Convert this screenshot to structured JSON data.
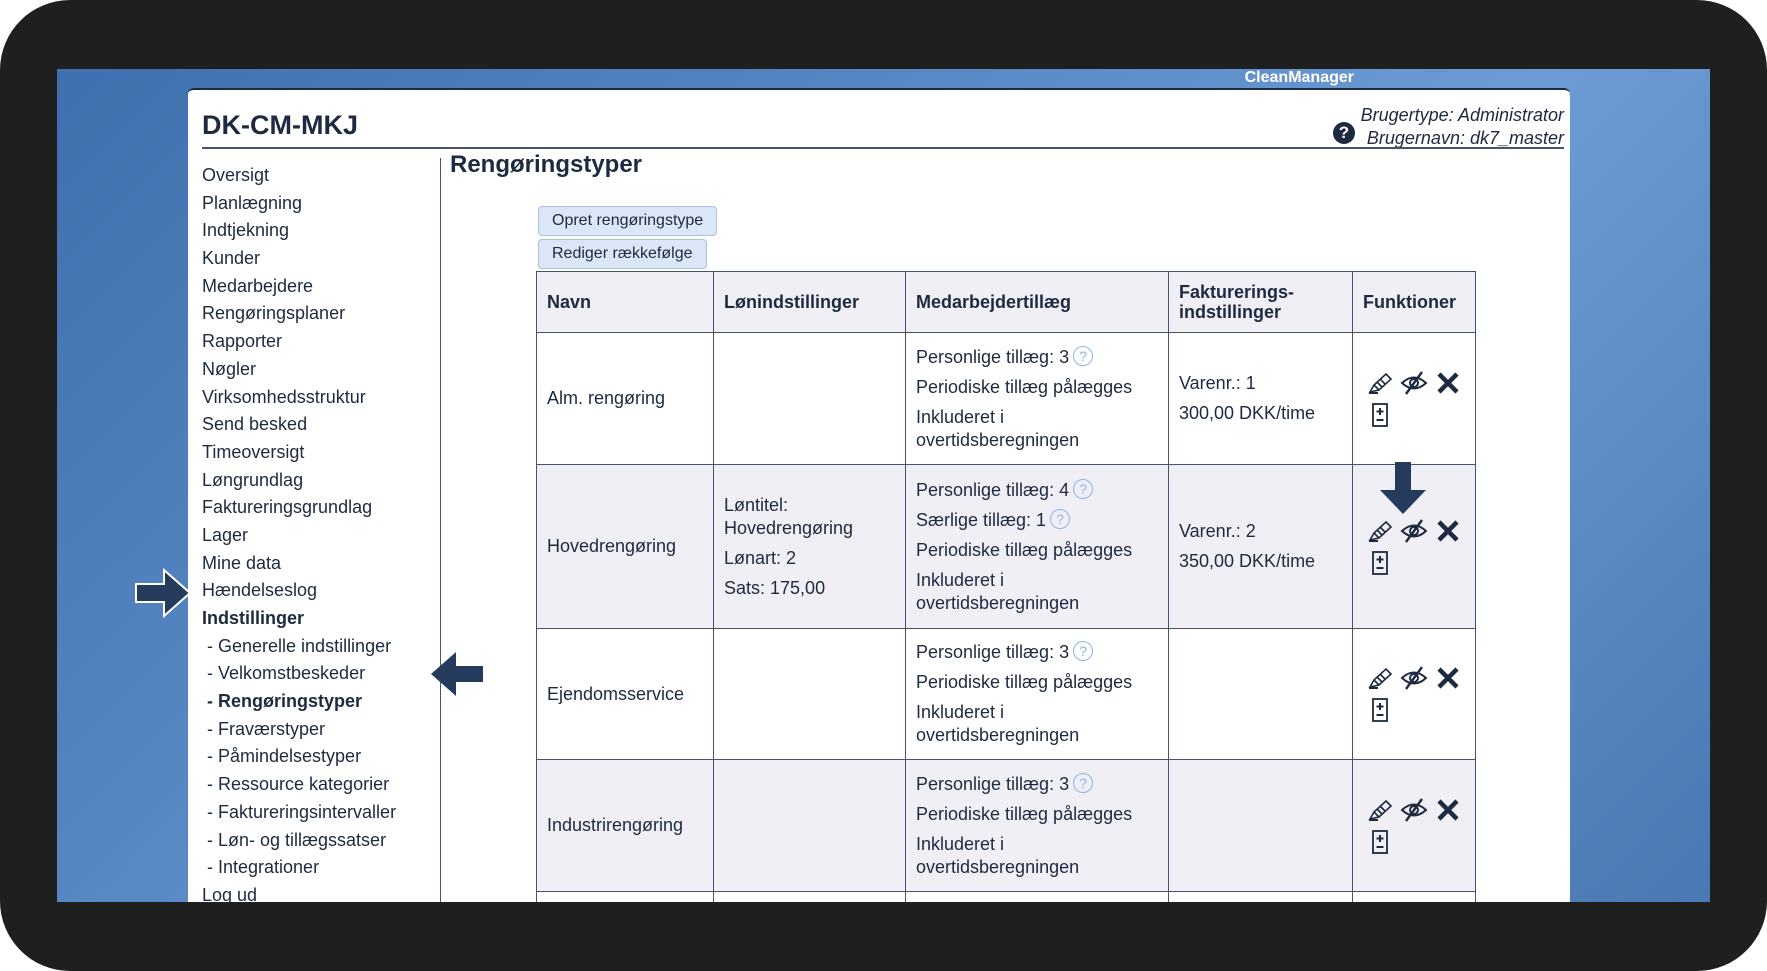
{
  "brand": "CleanManager",
  "header": {
    "title": "DK-CM-MKJ",
    "help_icon": "question-circle-icon",
    "usertype": "Brugertype: Administrator",
    "username": "Brugernavn: dk7_master"
  },
  "sidebar": {
    "items": [
      {
        "label": "Oversigt"
      },
      {
        "label": "Planlægning"
      },
      {
        "label": "Indtjekning"
      },
      {
        "label": "Kunder"
      },
      {
        "label": "Medarbejdere"
      },
      {
        "label": "Rengøringsplaner"
      },
      {
        "label": "Rapporter"
      },
      {
        "label": "Nøgler"
      },
      {
        "label": "Virksomhedsstruktur"
      },
      {
        "label": "Send besked"
      },
      {
        "label": "Timeoversigt"
      },
      {
        "label": "Løngrundlag"
      },
      {
        "label": "Faktureringsgrundlag"
      },
      {
        "label": "Lager"
      },
      {
        "label": "Mine data"
      },
      {
        "label": "Hændelseslog"
      },
      {
        "label": "Indstillinger",
        "active": true
      },
      {
        "label": "- Generelle indstillinger",
        "sub": true
      },
      {
        "label": "- Velkomstbeskeder",
        "sub": true
      },
      {
        "label": "- Rengøringstyper",
        "sub": true,
        "active": true
      },
      {
        "label": "- Fraværstyper",
        "sub": true
      },
      {
        "label": "- Påmindelsestyper",
        "sub": true
      },
      {
        "label": "- Ressource kategorier",
        "sub": true
      },
      {
        "label": "- Faktureringsintervaller",
        "sub": true
      },
      {
        "label": "- Løn- og tillægssatser",
        "sub": true
      },
      {
        "label": "- Integrationer",
        "sub": true
      },
      {
        "label": "Log ud"
      }
    ]
  },
  "main": {
    "title": "Rengøringstyper",
    "create_button": "Opret rengøringstype",
    "reorder_button": "Rediger rækkefølge",
    "table": {
      "headers": [
        "Navn",
        "Lønindstillinger",
        "Medarbejdertillæg",
        "Fakturerings-\nindstillinger",
        "Funktioner"
      ],
      "rows": [
        {
          "name": "Alm. rengøring",
          "salary": [],
          "supplements": [
            {
              "text": "Personlige tillæg: 3",
              "help": true
            },
            {
              "text": "Periodiske tillæg pålægges"
            },
            {
              "text": "Inkluderet i overtidsberegningen"
            }
          ],
          "billing": [
            "Varenr.: 1",
            "300,00 DKK/time"
          ]
        },
        {
          "name": "Hovedrengøring",
          "salary": [
            "Løntitel: Hovedrengøring",
            "Lønart: 2",
            "Sats: 175,00"
          ],
          "supplements": [
            {
              "text": "Personlige tillæg: 4",
              "help": true
            },
            {
              "text": "Særlige tillæg: 1",
              "help": true
            },
            {
              "text": "Periodiske tillæg pålægges"
            },
            {
              "text": "Inkluderet i overtidsberegningen"
            }
          ],
          "billing": [
            "Varenr.: 2",
            "350,00 DKK/time"
          ]
        },
        {
          "name": "Ejendomsservice",
          "salary": [],
          "supplements": [
            {
              "text": "Personlige tillæg: 3",
              "help": true
            },
            {
              "text": "Periodiske tillæg pålægges"
            },
            {
              "text": "Inkluderet i overtidsberegningen"
            }
          ],
          "billing": []
        },
        {
          "name": "Industrirengøring",
          "salary": [],
          "supplements": [
            {
              "text": "Personlige tillæg: 3",
              "help": true
            },
            {
              "text": "Periodiske tillæg pålægges"
            },
            {
              "text": "Inkluderet i overtidsberegningen"
            }
          ],
          "billing": []
        }
      ],
      "function_icons": [
        "pencil-edit-icon",
        "eye-slash-hide-icon",
        "delete-x-icon",
        "plus-minus-icon"
      ]
    }
  },
  "annotations": {
    "arrow_color": "#243b5e",
    "arrows": [
      "arrow-right-to-indstillinger",
      "arrow-left-to-rengoringstyper",
      "arrow-down-to-hide-icon"
    ]
  }
}
